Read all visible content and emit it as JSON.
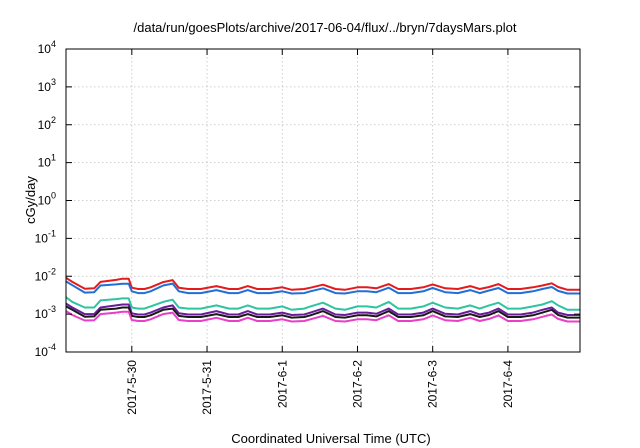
{
  "chart_data": {
    "type": "line",
    "title": "/data/run/goesPlots/archive/2017-06-04/flux/../bryn/7daysMars.plot",
    "xlabel": "Coordinated Universal Time (UTC)",
    "ylabel": "cGy/day",
    "xlim": [
      "2017-05-29 03:00",
      "2017-06-04 23:00"
    ],
    "ylim": [
      0.0001,
      10000
    ],
    "y_scale": "log",
    "grid": true,
    "x_ticks": [
      {
        "label": "2017-5-30",
        "at": "2017-05-30 00:00"
      },
      {
        "label": "2017-5-31",
        "at": "2017-05-31 00:00"
      },
      {
        "label": "2017-6-1",
        "at": "2017-06-01 00:00"
      },
      {
        "label": "2017-6-2",
        "at": "2017-06-02 00:00"
      },
      {
        "label": "2017-6-3",
        "at": "2017-06-03 00:00"
      },
      {
        "label": "2017-6-4",
        "at": "2017-06-04 00:00"
      }
    ],
    "y_ticks": [
      {
        "base": "10",
        "exp": "-4",
        "value": 0.0001
      },
      {
        "base": "10",
        "exp": "-3",
        "value": 0.001
      },
      {
        "base": "10",
        "exp": "-2",
        "value": 0.01
      },
      {
        "base": "10",
        "exp": "-1",
        "value": 0.1
      },
      {
        "base": "10",
        "exp": "0",
        "value": 1
      },
      {
        "base": "10",
        "exp": "1",
        "value": 10
      },
      {
        "base": "10",
        "exp": "2",
        "value": 100
      },
      {
        "base": "10",
        "exp": "3",
        "value": 1000
      },
      {
        "base": "10",
        "exp": "4",
        "value": 10000
      }
    ],
    "x": [
      "2017-05-29 03:00",
      "2017-05-29 05:00",
      "2017-05-29 09:00",
      "2017-05-29 12:00",
      "2017-05-29 14:00",
      "2017-05-29 19:00",
      "2017-05-29 21:00",
      "2017-05-29 23:00",
      "2017-05-30 00:00",
      "2017-05-30 02:00",
      "2017-05-30 04:00",
      "2017-05-30 06:00",
      "2017-05-30 10:00",
      "2017-05-30 13:00",
      "2017-05-30 15:00",
      "2017-05-30 18:00",
      "2017-05-30 22:00",
      "2017-05-31 03:00",
      "2017-05-31 07:00",
      "2017-05-31 10:00",
      "2017-05-31 13:00",
      "2017-05-31 16:00",
      "2017-05-31 20:00",
      "2017-06-01 00:00",
      "2017-06-01 03:00",
      "2017-06-01 07:00",
      "2017-06-01 09:00",
      "2017-06-01 13:00",
      "2017-06-01 17:00",
      "2017-06-01 20:00",
      "2017-06-02 00:00",
      "2017-06-02 03:00",
      "2017-06-02 06:00",
      "2017-06-02 10:00",
      "2017-06-02 13:00",
      "2017-06-02 17:00",
      "2017-06-02 21:00",
      "2017-06-03 00:00",
      "2017-06-03 04:00",
      "2017-06-03 08:00",
      "2017-06-03 12:00",
      "2017-06-03 15:00",
      "2017-06-03 18:00",
      "2017-06-03 21:00",
      "2017-06-04 00:00",
      "2017-06-04 04:00",
      "2017-06-04 08:00",
      "2017-06-04 11:00",
      "2017-06-04 14:00",
      "2017-06-04 16:00",
      "2017-06-04 19:00",
      "2017-06-04 23:00"
    ],
    "series": [
      {
        "color": "#e41a1c",
        "values": [
          0.0091,
          0.0071,
          0.0047,
          0.0048,
          0.0071,
          0.008,
          0.0086,
          0.0086,
          0.005,
          0.0046,
          0.0046,
          0.0051,
          0.007,
          0.0079,
          0.005,
          0.0046,
          0.0046,
          0.0055,
          0.0046,
          0.0046,
          0.0055,
          0.0046,
          0.0046,
          0.0051,
          0.0044,
          0.0046,
          0.005,
          0.006,
          0.0046,
          0.0044,
          0.0051,
          0.0051,
          0.0048,
          0.0062,
          0.0046,
          0.0046,
          0.0051,
          0.0061,
          0.0048,
          0.0046,
          0.0055,
          0.0046,
          0.0052,
          0.0062,
          0.0046,
          0.0046,
          0.0051,
          0.0057,
          0.0065,
          0.0052,
          0.0044,
          0.0044
        ]
      },
      {
        "color": "#1f6fd6",
        "values": [
          0.0073,
          0.0058,
          0.0037,
          0.0038,
          0.0057,
          0.0061,
          0.0063,
          0.0063,
          0.004,
          0.0036,
          0.0036,
          0.004,
          0.0057,
          0.0064,
          0.004,
          0.0036,
          0.0036,
          0.0043,
          0.0036,
          0.0036,
          0.0043,
          0.0036,
          0.0036,
          0.004,
          0.0035,
          0.0036,
          0.004,
          0.0048,
          0.0036,
          0.0035,
          0.004,
          0.004,
          0.0038,
          0.005,
          0.0036,
          0.0036,
          0.004,
          0.0049,
          0.0038,
          0.0036,
          0.0043,
          0.0036,
          0.0042,
          0.0049,
          0.0036,
          0.0036,
          0.004,
          0.0046,
          0.0052,
          0.0041,
          0.0035,
          0.0035
        ]
      },
      {
        "color": "#2ec4a0",
        "values": [
          0.0028,
          0.0021,
          0.0015,
          0.0015,
          0.0023,
          0.0025,
          0.0026,
          0.0026,
          0.0015,
          0.0014,
          0.0014,
          0.0016,
          0.0021,
          0.0024,
          0.0015,
          0.0014,
          0.0014,
          0.0017,
          0.0014,
          0.0014,
          0.0017,
          0.0014,
          0.0014,
          0.0016,
          0.0013,
          0.0014,
          0.0016,
          0.002,
          0.0014,
          0.0013,
          0.0016,
          0.0016,
          0.0015,
          0.0021,
          0.0014,
          0.0014,
          0.0016,
          0.002,
          0.0015,
          0.0014,
          0.0017,
          0.0014,
          0.0017,
          0.002,
          0.0014,
          0.0014,
          0.0016,
          0.0018,
          0.0022,
          0.0017,
          0.0013,
          0.0013
        ]
      },
      {
        "color": "#6a1b9a",
        "values": [
          0.0019,
          0.0015,
          0.001,
          0.001,
          0.0015,
          0.0017,
          0.0018,
          0.0018,
          0.00105,
          0.00098,
          0.00098,
          0.0011,
          0.0015,
          0.0017,
          0.00105,
          0.00098,
          0.00098,
          0.0012,
          0.00098,
          0.00098,
          0.0012,
          0.00098,
          0.00098,
          0.0011,
          0.00095,
          0.00098,
          0.0011,
          0.0014,
          0.00098,
          0.00095,
          0.0011,
          0.0011,
          0.00102,
          0.0014,
          0.00098,
          0.00098,
          0.0011,
          0.0014,
          0.00102,
          0.00098,
          0.0012,
          0.00098,
          0.0011,
          0.0014,
          0.00098,
          0.00098,
          0.0011,
          0.0013,
          0.0015,
          0.0011,
          0.00095,
          0.00095
        ]
      },
      {
        "color": "#1a1a1a",
        "values": [
          0.0016,
          0.0013,
          0.00085,
          0.00087,
          0.0013,
          0.0014,
          0.0015,
          0.0015,
          0.0009,
          0.00084,
          0.00084,
          0.00093,
          0.0013,
          0.0014,
          0.0009,
          0.00084,
          0.00084,
          0.001,
          0.00084,
          0.00084,
          0.001,
          0.00084,
          0.00084,
          0.00093,
          0.00081,
          0.00084,
          0.00093,
          0.0012,
          0.00084,
          0.00081,
          0.00093,
          0.00093,
          0.00087,
          0.0012,
          0.00084,
          0.00084,
          0.00093,
          0.0012,
          0.00087,
          0.00084,
          0.001,
          0.00084,
          0.00095,
          0.0012,
          0.00084,
          0.00084,
          0.00093,
          0.0011,
          0.0013,
          0.00095,
          0.00081,
          0.00081
        ]
      },
      {
        "color": "#e83fc8",
        "values": [
          0.0012,
          0.00095,
          0.00068,
          0.00069,
          0.001,
          0.0011,
          0.00115,
          0.00115,
          0.0007,
          0.00066,
          0.00066,
          0.00073,
          0.001,
          0.0011,
          0.0007,
          0.00066,
          0.00066,
          0.0008,
          0.00066,
          0.00066,
          0.0008,
          0.00066,
          0.00066,
          0.00073,
          0.00064,
          0.00066,
          0.00073,
          0.0009,
          0.00066,
          0.00064,
          0.00073,
          0.00073,
          0.00069,
          0.00093,
          0.00066,
          0.00066,
          0.00073,
          0.00092,
          0.00069,
          0.00066,
          0.0008,
          0.00066,
          0.00075,
          0.00092,
          0.00066,
          0.00066,
          0.00073,
          0.00085,
          0.00098,
          0.00075,
          0.00064,
          0.00064
        ]
      }
    ]
  }
}
